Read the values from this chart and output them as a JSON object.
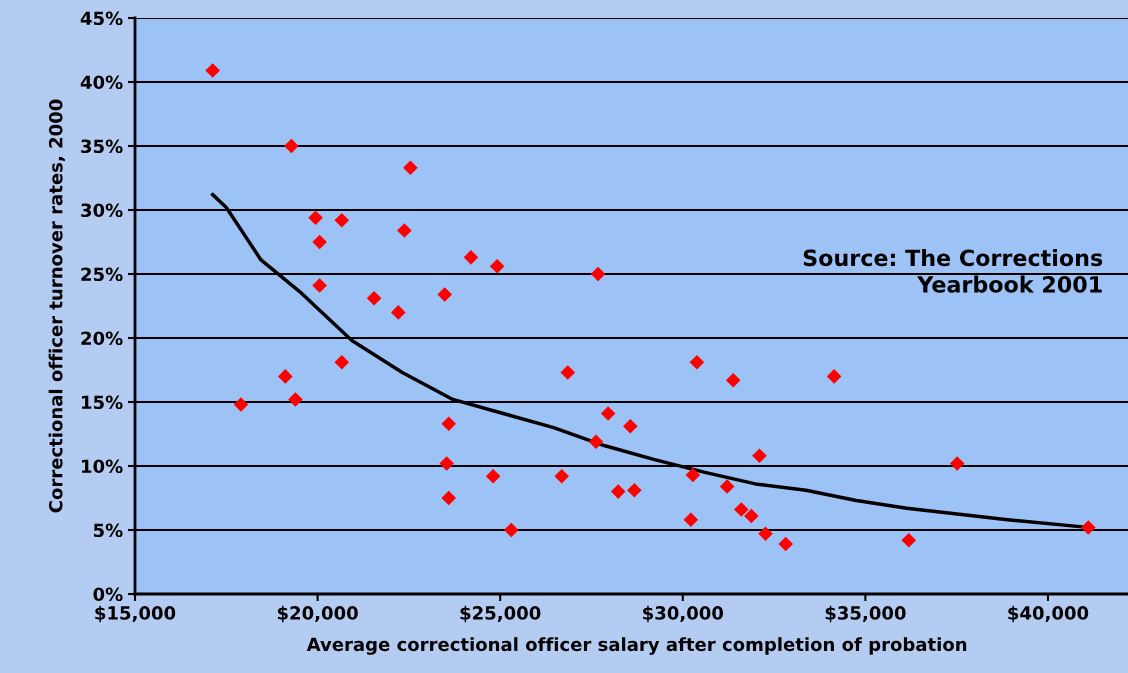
{
  "chart_data": {
    "type": "scatter",
    "xlabel": "Average correctional officer salary after completion of probation",
    "ylabel": "Correctional officer turnover rates, 2000",
    "annotations": [
      "Source: The Corrections\nYearbook 2001"
    ],
    "series": [
      {
        "color": "#ff0000",
        "marker": "diamond",
        "x": [
          17127,
          19282,
          19945,
          20055,
          20055,
          20663,
          20663,
          17901,
          19116,
          19392,
          21547,
          22210,
          22376,
          22541,
          23481,
          24199,
          24917,
          23591,
          23536,
          23591,
          24807,
          25304,
          26685,
          26851,
          27680,
          27624,
          27956,
          28232,
          28564,
          28674,
          30221,
          30276,
          30387,
          31215,
          31381,
          31602,
          31878,
          32099,
          32265,
          32818,
          34144,
          36188,
          37514,
          41105
        ],
        "values": [
          40.9,
          35.0,
          29.4,
          27.5,
          24.1,
          29.2,
          18.1,
          14.8,
          17.0,
          15.2,
          23.1,
          22.0,
          28.4,
          33.3,
          23.4,
          26.3,
          25.6,
          13.3,
          10.2,
          7.5,
          9.2,
          5.0,
          9.2,
          17.3,
          25.0,
          11.9,
          14.1,
          8.0,
          13.1,
          8.1,
          5.8,
          9.3,
          18.1,
          8.4,
          16.7,
          6.6,
          6.1,
          10.8,
          4.7,
          3.9,
          17.0,
          4.2,
          10.2,
          5.2
        ]
      },
      {
        "type": "line",
        "color": "#000000",
        "marker": "none",
        "line_style": "solid",
        "x": [
          17127,
          17500,
          18450,
          19558,
          20939,
          22320,
          23702,
          25083,
          26464,
          27845,
          29227,
          30608,
          31989,
          33370,
          34751,
          36133,
          37514,
          38895,
          41105
        ],
        "values": [
          31.2,
          30.2,
          26.1,
          23.5,
          19.8,
          17.3,
          15.2,
          14.1,
          13.0,
          11.6,
          10.5,
          9.5,
          8.6,
          8.1,
          7.3,
          6.7,
          6.25,
          5.8,
          5.2
        ]
      }
    ],
    "xlim": [
      15000,
      42500
    ],
    "xticks": [
      {
        "value": 15000,
        "label": "$15,000"
      },
      {
        "value": 20000,
        "label": "$20,000"
      },
      {
        "value": 25000,
        "label": "$25,000"
      },
      {
        "value": 30000,
        "label": "$30,000"
      },
      {
        "value": 35000,
        "label": "$35,000"
      },
      {
        "value": 40000,
        "label": "$40,000"
      }
    ],
    "ylim": [
      0,
      45
    ],
    "yticks": [
      {
        "value": 0,
        "label": "0%"
      },
      {
        "value": 5,
        "label": "5%"
      },
      {
        "value": 10,
        "label": "10%"
      },
      {
        "value": 15,
        "label": "15%"
      },
      {
        "value": 20,
        "label": "20%"
      },
      {
        "value": 25,
        "label": "25%"
      },
      {
        "value": 30,
        "label": "30%"
      },
      {
        "value": 35,
        "label": "35%"
      },
      {
        "value": 40,
        "label": "40%"
      },
      {
        "value": 45,
        "label": "45%"
      }
    ],
    "grid": "y",
    "legend": false
  }
}
